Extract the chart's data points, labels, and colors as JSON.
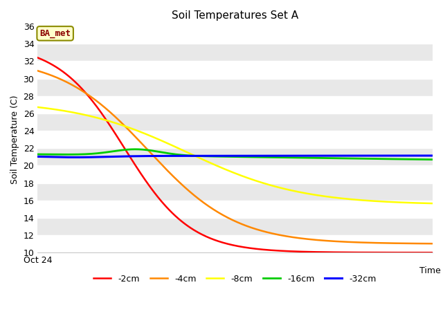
{
  "title": "Soil Temperatures Set A",
  "xlabel": "Time",
  "ylabel": "Soil Temperature (C)",
  "ylim": [
    10,
    36
  ],
  "yticks": [
    10,
    12,
    14,
    16,
    18,
    20,
    22,
    24,
    26,
    28,
    30,
    32,
    34,
    36
  ],
  "xtick_label": "Oct 24",
  "annotation": "BA_met",
  "annotation_color": "#8B0000",
  "annotation_bg": "#FFFFCC",
  "annotation_border": "#8B8B00",
  "fig_bg": "#FFFFFF",
  "plot_bg_light": "#E8E8E8",
  "plot_bg_white": "#FFFFFF",
  "grid_color": "#FFFFFF",
  "series_names": [
    "-2cm",
    "-4cm",
    "-8cm",
    "-16cm",
    "-32cm"
  ],
  "colors": {
    "-2cm": "#FF0000",
    "-4cm": "#FF8800",
    "-8cm": "#FFFF00",
    "-16cm": "#00CC00",
    "-32cm": "#0000FF"
  },
  "linewidths": {
    "-2cm": 1.8,
    "-4cm": 1.8,
    "-8cm": 1.8,
    "-16cm": 2.0,
    "-32cm": 2.2
  }
}
